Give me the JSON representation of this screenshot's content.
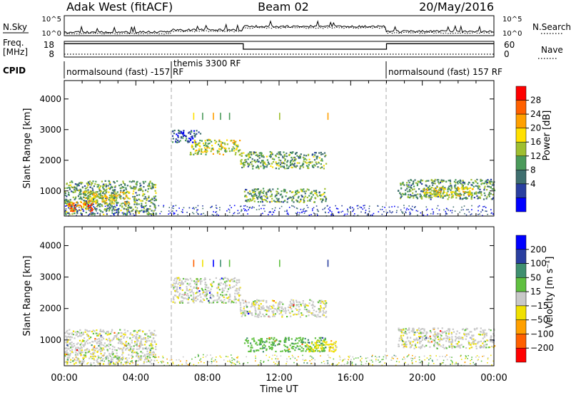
{
  "header": {
    "station": "Adak West (fitACF)",
    "beam": "Beam 02",
    "date": "20/May/2016"
  },
  "noise_panel": {
    "left_label": "N.Sky",
    "right_label": "N.Search",
    "left_ticks": [
      "10^5",
      "10^0"
    ],
    "right_ticks": [
      "10^5",
      "10^0"
    ]
  },
  "freq_panel": {
    "left_label": "Freq.",
    "left_unit": "[MHz]",
    "right_label": "Nave",
    "left_ticks": [
      "18",
      "8"
    ],
    "right_ticks": [
      "60",
      "0"
    ],
    "freq_mhz": [
      {
        "from": 0,
        "to": 10,
        "value": 16.5
      },
      {
        "from": 10,
        "to": 18,
        "value": 13.0
      },
      {
        "from": 18,
        "to": 24,
        "value": 16.5
      }
    ]
  },
  "cpid_panel": {
    "label": "CPID",
    "segments": [
      {
        "from": 0,
        "to": 6,
        "label": "normalsound (fast) -157 RF"
      },
      {
        "from": 6,
        "to": 18,
        "label": "themis 3300 RF"
      },
      {
        "from": 18,
        "to": 24,
        "label": "normalsound (fast) 157 RF"
      }
    ]
  },
  "colors": {
    "power": [
      "#0000ff",
      "#2a3fa0",
      "#3f6f6f",
      "#4a9a5a",
      "#9fbf30",
      "#ffe000",
      "#ffa000",
      "#ff6000",
      "#ff0000"
    ],
    "velocity_pos": [
      "#0000ff",
      "#2a3fa0",
      "#3f8f6f",
      "#60c040"
    ],
    "velocity_zero": "#c8c8c8",
    "velocity_neg": [
      "#f0e000",
      "#ffa000",
      "#ff6000",
      "#ff0000"
    ]
  },
  "chart_data": [
    {
      "type": "heatmap",
      "title": "Power",
      "xlabel": "Time UT",
      "ylabel": "Slant Range [km]",
      "xlim": [
        0,
        24
      ],
      "ylim": [
        180,
        4600
      ],
      "x_ticks": [
        "00:00",
        "04:00",
        "08:00",
        "12:00",
        "16:00",
        "20:00",
        "00:00"
      ],
      "y_ticks": [
        1000,
        2000,
        3000,
        4000
      ],
      "colorbar": {
        "label": "Power [dB]",
        "ticks": [
          4,
          8,
          12,
          16,
          20,
          24,
          28
        ],
        "range": [
          0,
          30
        ]
      },
      "regions": [
        {
          "t0": 0.0,
          "t1": 5.1,
          "r0": 250,
          "r1": 1350,
          "level": 12
        },
        {
          "t0": 0.2,
          "t1": 1.6,
          "r0": 350,
          "r1": 700,
          "level": 24
        },
        {
          "t0": 1.0,
          "t1": 3.6,
          "r0": 600,
          "r1": 1000,
          "level": 18
        },
        {
          "t0": 6.0,
          "t1": 7.6,
          "r0": 2600,
          "r1": 3000,
          "level": 6
        },
        {
          "t0": 7.0,
          "t1": 9.8,
          "r0": 2200,
          "r1": 2700,
          "level": 16
        },
        {
          "t0": 9.8,
          "t1": 14.6,
          "r0": 1750,
          "r1": 2300,
          "level": 12
        },
        {
          "t0": 10.0,
          "t1": 14.6,
          "r0": 650,
          "r1": 1100,
          "level": 12
        },
        {
          "t0": 18.6,
          "t1": 24.0,
          "r0": 750,
          "r1": 1400,
          "level": 11
        },
        {
          "t0": 20.0,
          "t1": 22.8,
          "r0": 850,
          "r1": 1150,
          "level": 18
        }
      ]
    },
    {
      "type": "heatmap",
      "title": "Velocity",
      "xlabel": "Time UT",
      "ylabel": "Slant Range [km]",
      "xlim": [
        0,
        24
      ],
      "ylim": [
        180,
        4600
      ],
      "x_ticks": [
        "00:00",
        "04:00",
        "08:00",
        "12:00",
        "16:00",
        "20:00",
        "00:00"
      ],
      "y_ticks": [
        1000,
        2000,
        3000,
        4000
      ],
      "colorbar": {
        "label": "Velocity [m s⁻¹]",
        "ticks": [
          "200",
          "100",
          "50",
          "15",
          "−15",
          "−50",
          "−100",
          "−200"
        ]
      },
      "regions": [
        {
          "t0": 0.0,
          "t1": 5.1,
          "r0": 250,
          "r1": 1350,
          "level": 0
        },
        {
          "t0": 6.0,
          "t1": 9.8,
          "r0": 2200,
          "r1": 3000,
          "level": 0
        },
        {
          "t0": 9.8,
          "t1": 14.6,
          "r0": 1750,
          "r1": 2300,
          "level": 0
        },
        {
          "t0": 10.0,
          "t1": 14.6,
          "r0": 650,
          "r1": 1100,
          "level": 40
        },
        {
          "t0": 13.5,
          "t1": 15.2,
          "r0": 650,
          "r1": 1000,
          "level": -30
        },
        {
          "t0": 18.6,
          "t1": 24.0,
          "r0": 750,
          "r1": 1400,
          "level": 0
        }
      ]
    }
  ]
}
